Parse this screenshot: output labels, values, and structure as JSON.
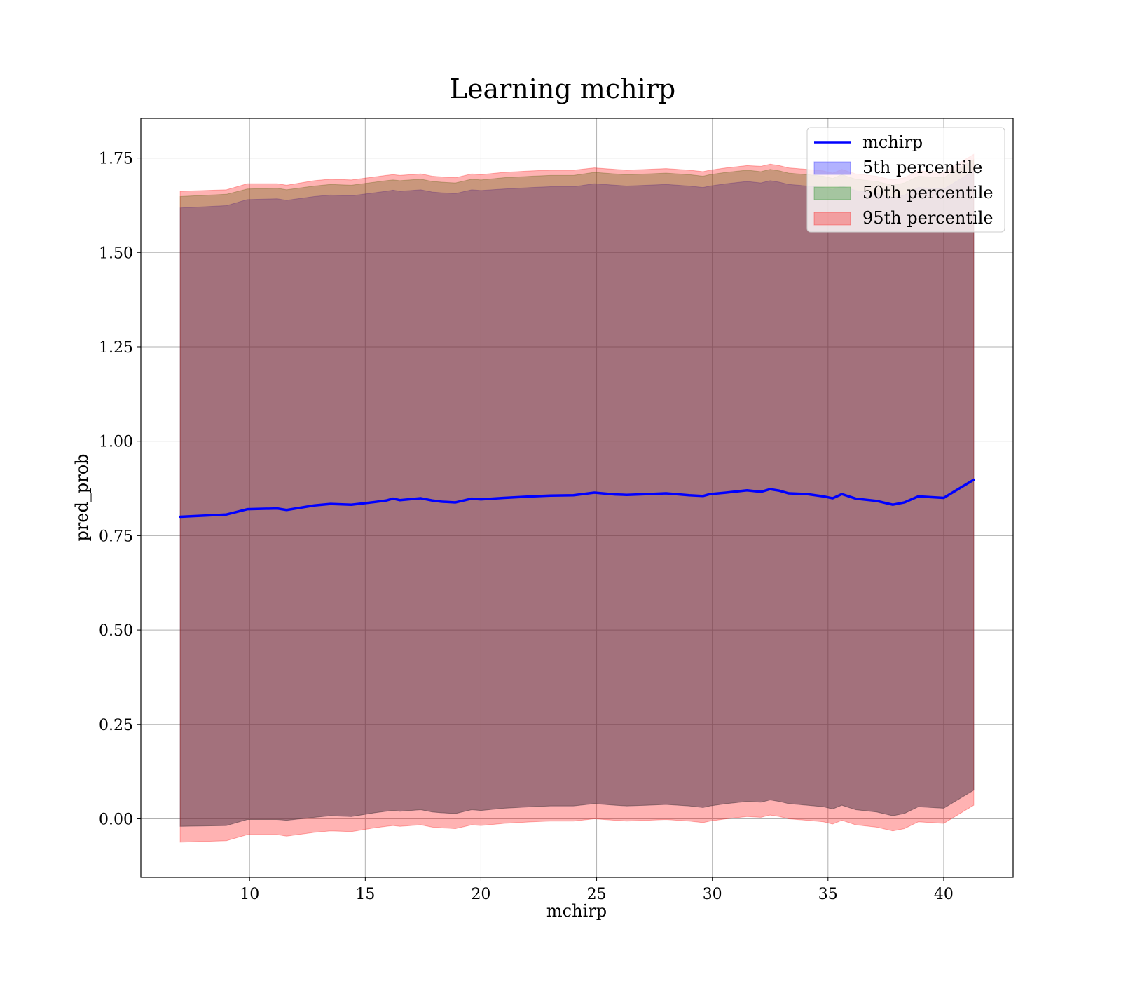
{
  "chart_data": {
    "type": "area",
    "title": "Learning mchirp",
    "xlabel": "mchirp",
    "ylabel": "pred_prob",
    "xlim": [
      5.3,
      43.0
    ],
    "ylim": [
      -0.155,
      1.855
    ],
    "grid": true,
    "legend_position": "top-right",
    "x_ticks": [
      10,
      15,
      20,
      25,
      30,
      35,
      40
    ],
    "x_tick_labels": [
      "10",
      "15",
      "20",
      "25",
      "30",
      "35",
      "40"
    ],
    "y_ticks": [
      0.0,
      0.25,
      0.5,
      0.75,
      1.0,
      1.25,
      1.5,
      1.75
    ],
    "y_tick_labels": [
      "0.00",
      "0.25",
      "0.50",
      "0.75",
      "1.00",
      "1.25",
      "1.50",
      "1.75"
    ],
    "x": [
      7.0,
      9.0,
      9.9,
      11.2,
      11.6,
      12.8,
      13.5,
      14.4,
      15.4,
      15.9,
      16.2,
      16.5,
      17.4,
      17.9,
      18.3,
      18.9,
      19.6,
      20.0,
      21.0,
      22.2,
      23.0,
      24.0,
      24.9,
      25.8,
      26.3,
      27.2,
      28.0,
      29.0,
      29.6,
      29.9,
      30.6,
      31.5,
      32.1,
      32.5,
      32.9,
      33.3,
      34.1,
      34.8,
      35.2,
      35.6,
      36.2,
      37.1,
      37.8,
      38.3,
      38.9,
      40.0,
      41.3
    ],
    "series": [
      {
        "name": "mchirp",
        "color": "#0000ff",
        "values": [
          0.8,
          0.806,
          0.82,
          0.822,
          0.818,
          0.83,
          0.834,
          0.832,
          0.839,
          0.843,
          0.848,
          0.844,
          0.849,
          0.843,
          0.84,
          0.838,
          0.848,
          0.846,
          0.85,
          0.854,
          0.856,
          0.857,
          0.864,
          0.859,
          0.858,
          0.86,
          0.862,
          0.857,
          0.855,
          0.86,
          0.864,
          0.87,
          0.866,
          0.873,
          0.869,
          0.862,
          0.86,
          0.854,
          0.849,
          0.86,
          0.848,
          0.842,
          0.832,
          0.838,
          0.854,
          0.85,
          0.898
        ]
      }
    ],
    "bands": [
      {
        "name": "5th percentile",
        "color": "#0000ff",
        "lower": [
          -0.02,
          -0.018,
          -0.002,
          -0.002,
          -0.004,
          0.004,
          0.008,
          0.006,
          0.016,
          0.02,
          0.022,
          0.02,
          0.024,
          0.018,
          0.016,
          0.014,
          0.024,
          0.022,
          0.028,
          0.032,
          0.034,
          0.034,
          0.04,
          0.036,
          0.034,
          0.036,
          0.038,
          0.034,
          0.03,
          0.034,
          0.04,
          0.046,
          0.044,
          0.05,
          0.046,
          0.04,
          0.036,
          0.032,
          0.026,
          0.036,
          0.024,
          0.018,
          0.008,
          0.014,
          0.032,
          0.028,
          0.076
        ],
        "upper": [
          1.618,
          1.624,
          1.64,
          1.642,
          1.638,
          1.648,
          1.652,
          1.65,
          1.658,
          1.662,
          1.665,
          1.662,
          1.666,
          1.66,
          1.658,
          1.656,
          1.666,
          1.664,
          1.668,
          1.672,
          1.674,
          1.674,
          1.682,
          1.678,
          1.676,
          1.678,
          1.68,
          1.676,
          1.672,
          1.676,
          1.682,
          1.688,
          1.684,
          1.69,
          1.686,
          1.68,
          1.676,
          1.672,
          1.666,
          1.676,
          1.664,
          1.656,
          1.646,
          1.652,
          1.672,
          1.668,
          1.716
        ]
      },
      {
        "name": "50th percentile",
        "color": "#008000",
        "lower": [
          -0.02,
          -0.018,
          -0.002,
          -0.002,
          -0.004,
          0.004,
          0.008,
          0.006,
          0.016,
          0.02,
          0.022,
          0.02,
          0.024,
          0.018,
          0.016,
          0.014,
          0.024,
          0.022,
          0.028,
          0.032,
          0.034,
          0.034,
          0.04,
          0.036,
          0.034,
          0.036,
          0.038,
          0.034,
          0.03,
          0.034,
          0.04,
          0.046,
          0.044,
          0.05,
          0.046,
          0.04,
          0.036,
          0.032,
          0.026,
          0.036,
          0.024,
          0.018,
          0.008,
          0.014,
          0.032,
          0.028,
          0.076
        ],
        "upper": [
          1.648,
          1.654,
          1.668,
          1.67,
          1.666,
          1.676,
          1.68,
          1.678,
          1.686,
          1.69,
          1.692,
          1.69,
          1.694,
          1.688,
          1.686,
          1.684,
          1.694,
          1.692,
          1.698,
          1.702,
          1.704,
          1.704,
          1.712,
          1.708,
          1.706,
          1.708,
          1.71,
          1.706,
          1.702,
          1.706,
          1.712,
          1.718,
          1.714,
          1.72,
          1.716,
          1.71,
          1.706,
          1.702,
          1.696,
          1.706,
          1.694,
          1.688,
          1.678,
          1.684,
          1.702,
          1.698,
          1.746
        ]
      },
      {
        "name": "95th percentile",
        "color": "#ff0000",
        "lower": [
          -0.062,
          -0.058,
          -0.042,
          -0.042,
          -0.046,
          -0.036,
          -0.032,
          -0.034,
          -0.024,
          -0.02,
          -0.018,
          -0.02,
          -0.016,
          -0.022,
          -0.024,
          -0.026,
          -0.016,
          -0.018,
          -0.012,
          -0.008,
          -0.006,
          -0.006,
          0.0,
          -0.004,
          -0.006,
          -0.004,
          -0.002,
          -0.006,
          -0.01,
          -0.006,
          0.0,
          0.006,
          0.004,
          0.01,
          0.006,
          0.0,
          -0.004,
          -0.008,
          -0.014,
          -0.004,
          -0.016,
          -0.022,
          -0.032,
          -0.026,
          -0.008,
          -0.012,
          0.036
        ],
        "upper": [
          1.662,
          1.666,
          1.682,
          1.682,
          1.678,
          1.69,
          1.694,
          1.692,
          1.7,
          1.704,
          1.706,
          1.704,
          1.708,
          1.702,
          1.7,
          1.698,
          1.708,
          1.706,
          1.712,
          1.716,
          1.718,
          1.718,
          1.724,
          1.72,
          1.718,
          1.72,
          1.722,
          1.718,
          1.714,
          1.718,
          1.724,
          1.73,
          1.728,
          1.734,
          1.73,
          1.724,
          1.72,
          1.716,
          1.71,
          1.72,
          1.708,
          1.702,
          1.692,
          1.698,
          1.716,
          1.712,
          1.76
        ]
      }
    ],
    "legend": [
      {
        "label": "mchirp",
        "kind": "line",
        "color": "#0000ff"
      },
      {
        "label": "5th percentile",
        "kind": "patch",
        "color": "#0000ff"
      },
      {
        "label": "50th percentile",
        "kind": "patch",
        "color": "#008000"
      },
      {
        "label": "95th percentile",
        "kind": "patch",
        "color": "#ff0000"
      }
    ]
  }
}
